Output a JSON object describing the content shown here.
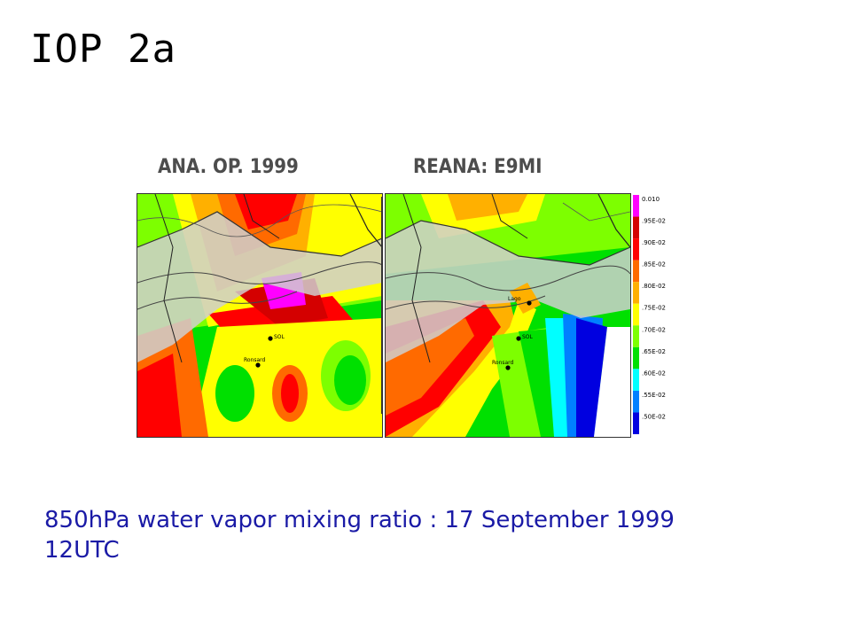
{
  "title": "IOP 2a",
  "panels": [
    {
      "label": "ANA. OP. 1999",
      "stations": {
        "sol": "SOL",
        "ronsard": "Ronsard"
      }
    },
    {
      "label": "REANA: E9MI",
      "stations": {
        "sol": "SOL",
        "ronsard": "Ronsard",
        "extra": "Lago"
      }
    }
  ],
  "legend": {
    "labels": [
      "0.010",
      ".95E-02",
      ".90E-02",
      ".85E-02",
      ".80E-02",
      ".75E-02",
      ".70E-02",
      ".65E-02",
      ".60E-02",
      ".55E-02",
      ".50E-02"
    ],
    "colors": [
      "#ff00ff",
      "#d40000",
      "#ff0000",
      "#ff6a00",
      "#ffb000",
      "#ffff00",
      "#7dff00",
      "#00e000",
      "#00ffff",
      "#0080ff",
      "#0000e0"
    ]
  },
  "caption": {
    "line1": "850hPa water vapor mixing ratio : 17 September 1999",
    "line2": "12UTC"
  }
}
